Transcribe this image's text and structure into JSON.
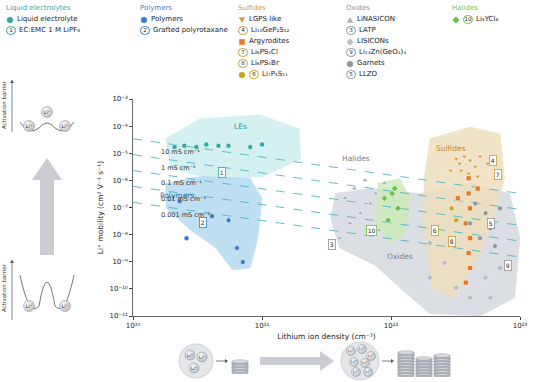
{
  "chart_data": {
    "type": "scatter",
    "x_label": "Lithium ion density (cm⁻³)",
    "y_label": "Li⁺ mobility (cm² V⁻¹ s⁻¹)",
    "log": true,
    "grid": false,
    "xlim": [
      1e+20,
      1e+23
    ],
    "ylim": [
      1e-11,
      0.001
    ],
    "xticks": [
      {
        "value": 1e+20,
        "label": "10²⁰"
      },
      {
        "value": 1e+21,
        "label": "10²¹"
      },
      {
        "value": 1e+22,
        "label": "10²²"
      },
      {
        "value": 1e+23,
        "label": "10²³"
      }
    ],
    "yticks": [
      {
        "value": 1e-11,
        "label": "10⁻¹¹"
      },
      {
        "value": 1e-10,
        "label": "10⁻¹⁰"
      },
      {
        "value": 1e-09,
        "label": "10⁻⁹"
      },
      {
        "value": 1e-08,
        "label": "10⁻⁸"
      },
      {
        "value": 1e-07,
        "label": "10⁻⁷"
      },
      {
        "value": 1e-06,
        "label": "10⁻⁶"
      },
      {
        "value": 1e-05,
        "label": "10⁻⁵"
      },
      {
        "value": 0.0001,
        "label": "10⁻⁴"
      },
      {
        "value": 0.001,
        "label": "10⁻³"
      }
    ],
    "groups": [
      {
        "title": "Liquid electrolytes",
        "color": "#2fa7a7",
        "entries": [
          {
            "name": "Liquid electrolyte",
            "marker": "circle",
            "color": "#2fa7a7",
            "x": [
              2.1e+20,
              2.5e+20,
              3.1e+20,
              3.7e+20,
              4.6e+20,
              5.5e+20,
              8.1e+20,
              1e+21
            ],
            "values": [
              1.7e-05,
              1.9e-05,
              1.7e-05,
              2.1e-05,
              1.9e-05,
              1.9e-05,
              1.7e-05,
              2.1e-05
            ]
          },
          {
            "number": "1",
            "name": "EC:EMC 1 M LiPF₆",
            "at": [
              4.9e+20,
              1.95e-06
            ]
          }
        ]
      },
      {
        "title": "Polymers",
        "color": "#3b7ec4",
        "entries": [
          {
            "name": "Polymers",
            "marker": "circle",
            "color": "#3b7ec4",
            "x": [
              2.3e+20,
              4.1e+20,
              5.5e+20,
              6.4e+20,
              7.1e+20,
              2.6e+20
            ],
            "values": [
              1.7e-07,
              4.8e-08,
              3.4e-08,
              3.2e-09,
              9.8e-10,
              7.4e-09
            ]
          },
          {
            "number": "2",
            "name": "Grafted polyrotaxane",
            "at": [
              3.5e+20,
              2.9e-08
            ]
          }
        ]
      },
      {
        "title": "Sulfides",
        "color": "#c99a3b",
        "entries": [
          {
            "name": "LGPS like",
            "marker": "triangle-down",
            "color": "#d4a13e",
            "x": [
              3.2e+22,
              3.4e+22,
              3.7e+22,
              4.1e+22,
              4.5e+22,
              3.5e+22,
              4.9e+22,
              5.6e+22,
              2.9e+22,
              4e+22,
              4.7e+22
            ],
            "values": [
              6.3e-06,
              4.2e-06,
              7.6e-06,
              5.4e-06,
              3.2e-06,
              2.3e-06,
              7.6e-06,
              4.2e-06,
              2.3e-06,
              1.8e-06,
              1.4e-06
            ]
          },
          {
            "number": "4",
            "name": "Li₁₀GeP₂S₁₂",
            "at": [
              6.2e+22,
              5.4e-06
            ]
          },
          {
            "name": "Argyrodites",
            "marker": "square",
            "color": "#e07b28",
            "x": [
              4e+22,
              4e+22,
              4.1e+22,
              3.8e+22,
              4.1e+22,
              4e+22,
              4.1e+22,
              3.8e+22,
              4.7e+22,
              3.3e+22
            ],
            "values": [
              1.2e-06,
              3.3e-07,
              9.3e-08,
              2.6e-08,
              7.4e-09,
              2.1e-09,
              5.9e-10,
              1.7e-10,
              5e-07,
              2.2e-07
            ]
          },
          {
            "number": "7",
            "name": "Li₆PS₅Cl",
            "at": [
              6.8e+22,
              1.66e-06
            ]
          },
          {
            "number": "8",
            "name": "Li₆PS₅Br",
            "at": [
              2.95e+22,
              5.8e-09
            ]
          },
          {
            "number": "6",
            "name": "Li₇P₃S₁₁",
            "marker": "circle",
            "color": "#c8a415",
            "x": [
              2.95e+22,
              3.2e+22
            ],
            "values": [
              9.3e-08,
              3.4e-08
            ],
            "at": [
              2.2e+22,
              1.45e-08
            ]
          }
        ]
      },
      {
        "title": "Oxides",
        "color": "#8e939b",
        "entries": [
          {
            "name": "LiNASICON",
            "marker": "triangle-up",
            "color": "#a7adb6",
            "x": [
              4.4e+21,
              5.2e+21,
              6.3e+21,
              7.6e+21,
              8.9e+21,
              4.8e+21,
              5.8e+21,
              6.9e+21,
              8.1e+21,
              4e+21
            ],
            "values": [
              2.2e-07,
              5e-07,
              1e-06,
              3.3e-07,
              7.8e-07,
              2.6e-08,
              6.2e-08,
              1.4e-07,
              1.45e-08,
              7.4e-09
            ]
          },
          {
            "number": "3",
            "name": "LATP",
            "at": [
              3.5e+21,
              4.2e-09
            ]
          },
          {
            "name": "LISICONs",
            "marker": "diamond",
            "color": "#b9bec6",
            "x": [
              2e+22,
              2.6e+22,
              3.2e+22,
              4.1e+22,
              5.4e+22,
              7e+22,
              5.9e+22,
              2e+22
            ],
            "values": [
              4.9e-09,
              9.1e-10,
              1.1e-10,
              4.7e-11,
              2.6e-10,
              5.9e-10,
              4.7e-11,
              2.6e-10
            ]
          },
          {
            "number": "9",
            "name": "Li₁₄Zn(GeO₄)₄",
            "at": [
              8.1e+22,
              7.1e-10
            ]
          },
          {
            "name": "Garnets",
            "marker": "circle",
            "color": "#9197a1",
            "x": [
              4.5e+22,
              5.4e+22,
              5.9e+22,
              4.9e+22,
              6.4e+22,
              4.1e+22,
              7e+22
            ],
            "values": [
              1.4e-07,
              6.2e-08,
              1.7e-08,
              7.4e-09,
              3.8e-09,
              2.6e-08,
              9.3e-08
            ]
          },
          {
            "number": "5",
            "name": "LLZO",
            "at": [
              6e+22,
              2.6e-08
            ]
          }
        ]
      },
      {
        "title": "Halides",
        "color": "#6cbf4a",
        "entries": [
          {
            "number": "10",
            "name": "Li₃YCl₆",
            "marker": "diamond",
            "color": "#6cbf4a",
            "x": [
              8.9e+21,
              1.02e+22,
              1.13e+22,
              9.5e+21,
              1.07e+22
            ],
            "values": [
              2.2e-07,
              3.3e-07,
              9.3e-08,
              3.4e-08,
              5e-07
            ],
            "at": [
              7.1e+21,
              1.45e-08
            ]
          }
        ]
      }
    ],
    "regions": [
      {
        "name": "Oxides",
        "color": "#d5d9df",
        "text_color": "#7a8088",
        "x": [
          3.7e+21,
          6.9e+21,
          1.67e+22,
          4.1e+22,
          8.3e+22,
          1e+23,
          9.1e+22,
          4.9e+22,
          2e+22,
          1.29e+22,
          7.6e+21,
          4e+21,
          3.4e+21
        ],
        "values": [
          3.3e-07,
          5e-07,
          3.3e-07,
          7.8e-07,
          3.3e-07,
          7.4e-09,
          4.7e-11,
          1e-11,
          1.2e-11,
          7.2e-11,
          7.1e-10,
          3.2e-09,
          4e-08
        ],
        "label_at": [
          1.17e+22,
          1.6e-09
        ]
      },
      {
        "name": "Sulfides",
        "color": "#eedfbe",
        "text_color": "#b8862e",
        "x": [
          2e+22,
          4.1e+22,
          7e+22,
          7.6e+22,
          6.4e+22,
          4.9e+22,
          3.1e+22,
          2.1e+22,
          1.8e+22,
          1.8e+22
        ],
        "values": [
          3.4e-05,
          9.3e-05,
          5.2e-05,
          1.2e-06,
          6.2e-08,
          2.1e-09,
          4.7e-11,
          1.1e-10,
          1.7e-08,
          1.2e-06
        ],
        "label_at": [
          2.9e+22,
          1.5e-05
        ]
      },
      {
        "name": "Halides",
        "color": "#cdeabb",
        "text_color": "#7a8088",
        "x": [
          7.9e+21,
          1.17e+22,
          1.4e+22,
          1.29e+22,
          9.8e+21,
          7.6e+21
        ],
        "values": [
          7.8e-07,
          1.2e-06,
          2.2e-07,
          1.1e-08,
          4.9e-09,
          2.6e-08
        ],
        "label_at": [
          5.4e+21,
          6.3e-06
        ]
      },
      {
        "name": "LEs",
        "color": "#cdeeee",
        "text_color": "#2a9d9d",
        "x": [
          1.78e+20,
          3.3e+20,
          9.6e+20,
          1.95e+21,
          2e+21,
          1.05e+21,
          4.4e+20,
          1.95e+20
        ],
        "values": [
          3.4e-05,
          0.000186,
          0.00026,
          7.9e-05,
          6.3e-06,
          1.4e-06,
          1e-06,
          2.75e-06
        ],
        "label_at": [
          6.8e+20,
          9.3e-05
        ]
      },
      {
        "name": "Polymers",
        "color": "#b5daf2",
        "text_color": "#2f73b5",
        "x": [
          1.78e+20,
          3.3e+20,
          8.1e+20,
          1e+21,
          9.3e+20,
          8.1e+20,
          5.9e+20,
          4.4e+20,
          2.8e+20,
          1.8e+20
        ],
        "values": [
          7.8e-07,
          1.4e-06,
          1.2e-06,
          2.2e-07,
          7.4e-09,
          5.9e-10,
          5e-10,
          3.2e-09,
          1.45e-08,
          9.3e-08
        ],
        "label_at": [
          2.2e+20,
          2.8e-07
        ]
      }
    ],
    "conductivity_lines": [
      {
        "name": "10 mS cm⁻¹",
        "x": [
          1e+20,
          1e+23
        ],
        "values": [
          3.4e-05,
          3.3e-07
        ],
        "label_at": [
          1.6e+20,
          1.15e-05
        ]
      },
      {
        "name": "1 mS cm⁻¹",
        "x": [
          1e+20,
          1e+23
        ],
        "values": [
          8.9e-06,
          8.5e-08
        ],
        "label_at": [
          1.6e+20,
          2.95e-06
        ]
      },
      {
        "name": "0.1 mS cm⁻¹",
        "x": [
          1e+20,
          1e+23
        ],
        "values": [
          2.3e-06,
          2.2e-08
        ],
        "label_at": [
          1.6e+20,
          7.8e-07
        ]
      },
      {
        "name": "0.01 mS cm⁻¹",
        "x": [
          1e+20,
          1e+23
        ],
        "values": [
          6e-07,
          5.8e-09
        ],
        "label_at": [
          1.6e+20,
          2e-07
        ]
      },
      {
        "name": "0.001 mS cm⁻¹",
        "x": [
          1e+20,
          1e+23
        ],
        "values": [
          1.55e-07,
          1.5e-09
        ],
        "label_at": [
          1.6e+20,
          5.1e-08
        ]
      }
    ],
    "diagram": {
      "barrier_label": "Activation barrier",
      "ion_label": "Li⁺"
    }
  }
}
